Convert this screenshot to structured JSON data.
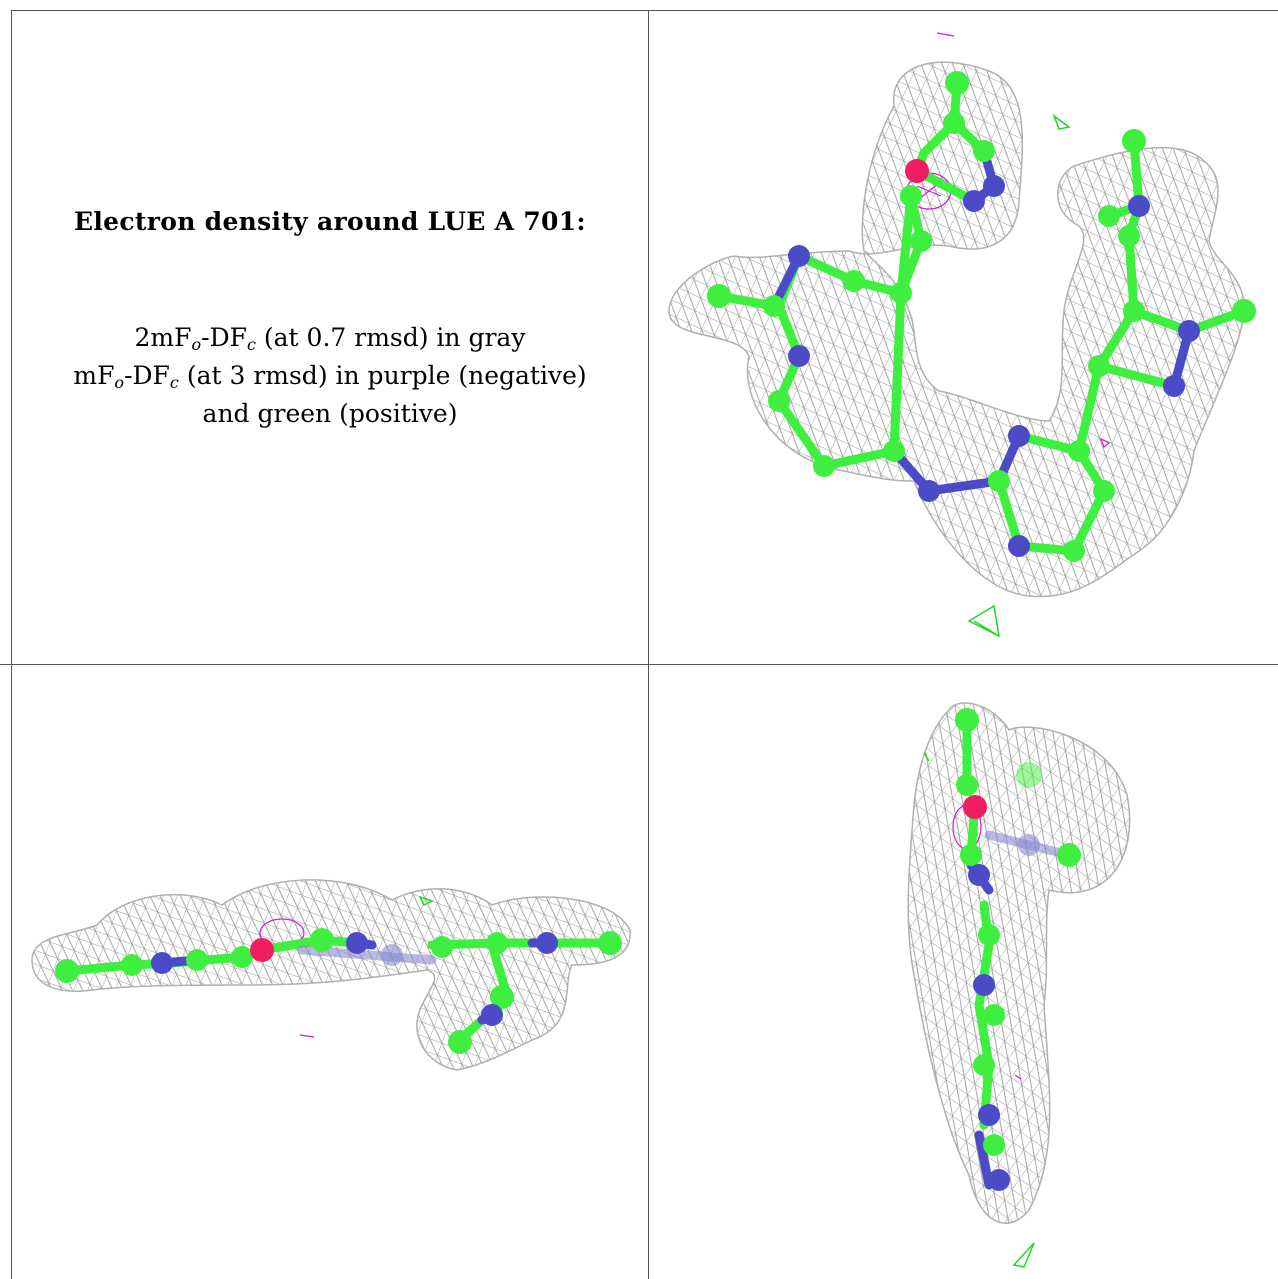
{
  "title": "Electron density around LUE A 701:",
  "legend": {
    "line1_prefix": "2mF",
    "line1_sub1": "o",
    "line1_mid": "-DF",
    "line1_sub2": "c",
    "line1_suffix": " (at 0.7 rmsd) in gray",
    "line2_prefix": "mF",
    "line2_sub1": "o",
    "line2_mid": "-DF",
    "line2_sub2": "c",
    "line2_suffix": " (at 3 rmsd) in purple (negative)",
    "line3": "and green (positive)"
  },
  "colors": {
    "carbon": "#3fef3f",
    "nitrogen": "#4b4bc8",
    "oxygen": "#ee1f61",
    "mesh_2fofc": "#9a9a9a",
    "mesh_negative": "#d41ad4",
    "mesh_positive": "#1fd81f"
  }
}
